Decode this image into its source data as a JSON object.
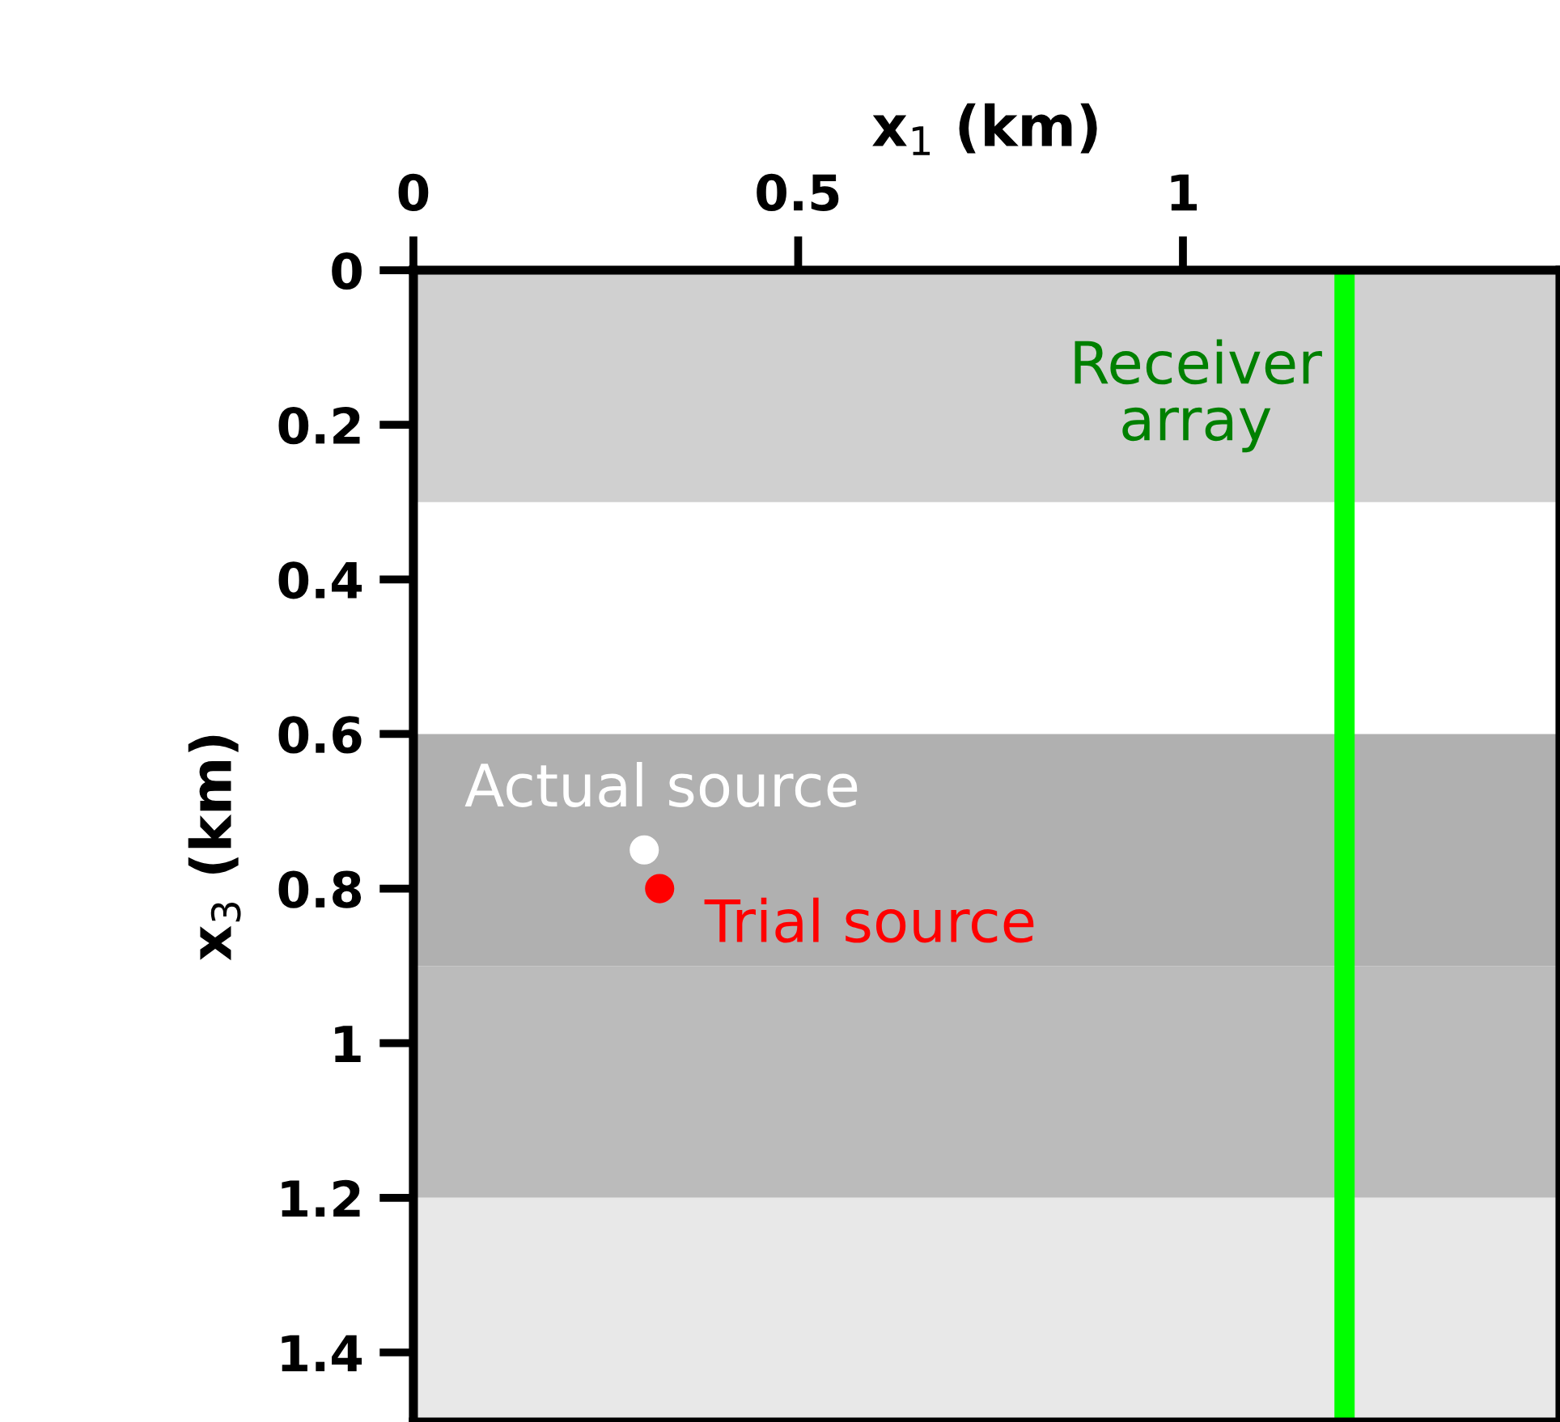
{
  "chart_data": {
    "type": "scatter",
    "xlabel": "x$_{1}$ (km)",
    "ylabel": "x$_{3}$ (km)",
    "xlim": [
      0,
      1.49
    ],
    "ylim": [
      1.49,
      0
    ],
    "xticks": [
      0,
      0.5,
      1
    ],
    "yticks": [
      0,
      0.2,
      0.4,
      0.6,
      0.8,
      1,
      1.2,
      1.4
    ],
    "grid": false,
    "legend": false,
    "marker": "circle",
    "series": [
      {
        "name": "Actual source",
        "color": "#ffffff",
        "x": [
          0.3
        ],
        "values": [
          0.75
        ]
      },
      {
        "name": "Trial source",
        "color": "#ff0000",
        "x": [
          0.32
        ],
        "values": [
          0.8
        ]
      }
    ],
    "bands": [
      {
        "axis": "y",
        "from": 0,
        "to": 0.3,
        "color": "#d0d0d0"
      },
      {
        "axis": "y",
        "from": 0.6,
        "to": 0.9,
        "color": "#b0b0b0"
      },
      {
        "axis": "y",
        "from": 0.9,
        "to": 1.2,
        "color": "#bbbbbb"
      },
      {
        "axis": "y",
        "from": 1.2,
        "to": 1.49,
        "color": "#e8e8e8"
      }
    ],
    "ref_lines": [
      {
        "axis": "x",
        "value": 1.21,
        "label": "Receiver\narray",
        "color": "#00ff00"
      }
    ]
  }
}
